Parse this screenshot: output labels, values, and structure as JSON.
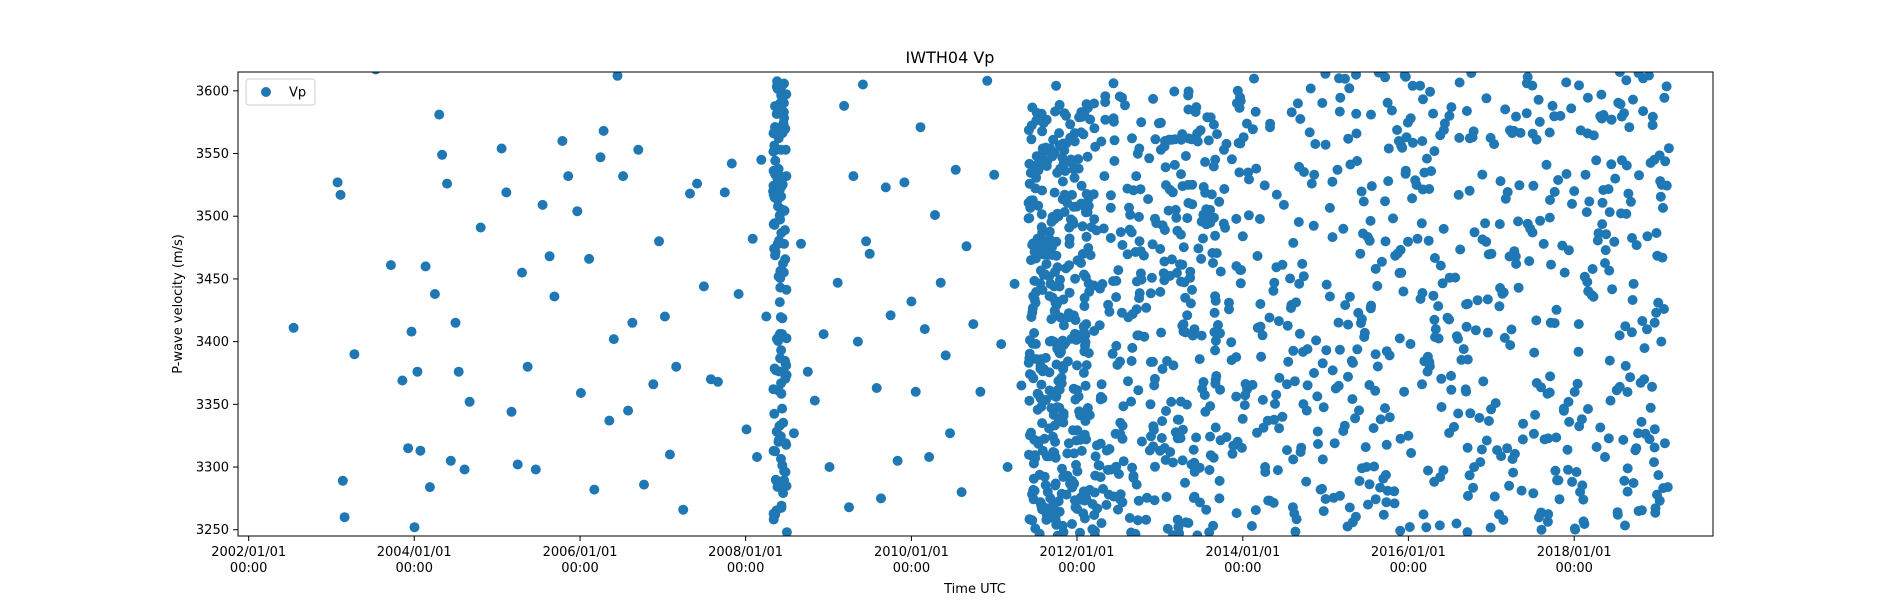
{
  "chart_data": {
    "type": "scatter",
    "title": "IWTH04 Vp",
    "xlabel": "Time UTC",
    "ylabel": "P-wave velocity (m/s)",
    "xlim": [
      "2001-11-15",
      "2019-09-05"
    ],
    "ylim": [
      3245,
      3615
    ],
    "x_ticks": [
      {
        "date": "2002-01-01",
        "label_1": "2002/01/01",
        "label_2": "00:00"
      },
      {
        "date": "2004-01-01",
        "label_1": "2004/01/01",
        "label_2": "00:00"
      },
      {
        "date": "2006-01-01",
        "label_1": "2006/01/01",
        "label_2": "00:00"
      },
      {
        "date": "2008-01-01",
        "label_1": "2008/01/01",
        "label_2": "00:00"
      },
      {
        "date": "2010-01-01",
        "label_1": "2010/01/01",
        "label_2": "00:00"
      },
      {
        "date": "2012-01-01",
        "label_1": "2012/01/01",
        "label_2": "00:00"
      },
      {
        "date": "2014-01-01",
        "label_1": "2014/01/01",
        "label_2": "00:00"
      },
      {
        "date": "2016-01-01",
        "label_1": "2016/01/01",
        "label_2": "00:00"
      },
      {
        "date": "2018-01-01",
        "label_1": "2018/01/01",
        "label_2": "00:00"
      }
    ],
    "y_ticks": [
      3250,
      3300,
      3350,
      3400,
      3450,
      3500,
      3550,
      3600
    ],
    "grid": false,
    "legend": {
      "position": "top-left",
      "entries": [
        "Vp"
      ]
    },
    "series": [
      {
        "name": "Vp",
        "color": "#1f77b4",
        "points": [
          [
            "2002-07-18",
            3411
          ],
          [
            "2003-01-28",
            3527
          ],
          [
            "2003-02-10",
            3517
          ],
          [
            "2003-02-20",
            3289
          ],
          [
            "2003-02-28",
            3260
          ],
          [
            "2003-04-12",
            3390
          ],
          [
            "2003-07-15",
            3617
          ],
          [
            "2003-09-20",
            3461
          ],
          [
            "2003-11-10",
            3369
          ],
          [
            "2003-12-05",
            3315
          ],
          [
            "2003-12-20",
            3408
          ],
          [
            "2004-01-02",
            3252
          ],
          [
            "2004-01-15",
            3376
          ],
          [
            "2004-01-28",
            3313
          ],
          [
            "2004-02-20",
            3460
          ],
          [
            "2004-03-10",
            3284
          ],
          [
            "2004-04-01",
            3438
          ],
          [
            "2004-04-20",
            3581
          ],
          [
            "2004-05-03",
            3549
          ],
          [
            "2004-05-25",
            3526
          ],
          [
            "2004-06-10",
            3305
          ],
          [
            "2004-07-01",
            3415
          ],
          [
            "2004-07-15",
            3376
          ],
          [
            "2004-08-10",
            3298
          ],
          [
            "2004-09-01",
            3352
          ],
          [
            "2004-10-20",
            3491
          ],
          [
            "2005-01-20",
            3554
          ],
          [
            "2005-02-10",
            3519
          ],
          [
            "2005-03-05",
            3344
          ],
          [
            "2005-04-01",
            3302
          ],
          [
            "2005-04-20",
            3455
          ],
          [
            "2005-05-15",
            3380
          ],
          [
            "2005-06-20",
            3298
          ],
          [
            "2005-07-20",
            3509
          ],
          [
            "2005-08-20",
            3468
          ],
          [
            "2005-09-10",
            3436
          ],
          [
            "2005-10-15",
            3560
          ],
          [
            "2005-11-10",
            3532
          ],
          [
            "2005-12-20",
            3504
          ],
          [
            "2006-01-05",
            3359
          ],
          [
            "2006-02-10",
            3466
          ],
          [
            "2006-03-05",
            3282
          ],
          [
            "2006-04-01",
            3547
          ],
          [
            "2006-04-15",
            3568
          ],
          [
            "2006-05-10",
            3337
          ],
          [
            "2006-05-30",
            3402
          ],
          [
            "2006-06-15",
            3612
          ],
          [
            "2006-07-10",
            3532
          ],
          [
            "2006-08-01",
            3345
          ],
          [
            "2006-08-20",
            3415
          ],
          [
            "2006-09-15",
            3553
          ],
          [
            "2006-10-10",
            3286
          ],
          [
            "2006-11-20",
            3366
          ],
          [
            "2006-12-15",
            3480
          ],
          [
            "2007-01-10",
            3420
          ],
          [
            "2007-02-01",
            3310
          ],
          [
            "2007-03-01",
            3380
          ],
          [
            "2007-04-01",
            3266
          ],
          [
            "2007-05-01",
            3518
          ],
          [
            "2007-06-01",
            3526
          ],
          [
            "2007-07-01",
            3444
          ],
          [
            "2007-08-01",
            3370
          ],
          [
            "2007-09-01",
            3368
          ],
          [
            "2007-10-01",
            3519
          ],
          [
            "2007-11-01",
            3542
          ],
          [
            "2007-12-01",
            3438
          ],
          [
            "2008-01-05",
            3330
          ],
          [
            "2008-02-01",
            3482
          ],
          [
            "2008-02-20",
            3308
          ],
          [
            "2008-03-10",
            3545
          ],
          [
            "2008-04-01",
            3420
          ],
          [
            "2008-05-01",
            3520
          ],
          [
            "2008-06-01",
            3590
          ],
          [
            "2008-07-01",
            3248
          ],
          [
            "2008-08-01",
            3327
          ],
          [
            "2008-09-01",
            3478
          ],
          [
            "2008-10-01",
            3376
          ],
          [
            "2008-11-01",
            3353
          ],
          [
            "2008-12-10",
            3406
          ],
          [
            "2009-01-05",
            3300
          ],
          [
            "2009-02-10",
            3447
          ],
          [
            "2009-03-10",
            3588
          ],
          [
            "2009-04-01",
            3268
          ],
          [
            "2009-04-20",
            3532
          ],
          [
            "2009-05-10",
            3400
          ],
          [
            "2009-06-01",
            3605
          ],
          [
            "2009-06-15",
            3480
          ],
          [
            "2009-07-01",
            3470
          ],
          [
            "2009-08-01",
            3363
          ],
          [
            "2009-08-20",
            3275
          ],
          [
            "2009-09-10",
            3523
          ],
          [
            "2009-10-01",
            3421
          ],
          [
            "2009-11-01",
            3305
          ],
          [
            "2009-12-01",
            3527
          ],
          [
            "2010-01-01",
            3432
          ],
          [
            "2010-01-20",
            3360
          ],
          [
            "2010-02-10",
            3571
          ],
          [
            "2010-03-01",
            3410
          ],
          [
            "2010-03-20",
            3308
          ],
          [
            "2010-04-15",
            3501
          ],
          [
            "2010-05-10",
            3447
          ],
          [
            "2010-06-01",
            3389
          ],
          [
            "2010-06-20",
            3327
          ],
          [
            "2010-07-15",
            3537
          ],
          [
            "2010-08-10",
            3280
          ],
          [
            "2010-09-01",
            3476
          ],
          [
            "2010-10-01",
            3414
          ],
          [
            "2010-11-01",
            3360
          ],
          [
            "2010-12-01",
            3608
          ],
          [
            "2011-01-01",
            3533
          ],
          [
            "2011-02-01",
            3398
          ],
          [
            "2011-03-01",
            3300
          ],
          [
            "2011-04-01",
            3446
          ],
          [
            "2011-05-01",
            3365
          ],
          [
            "2011-09-15",
            3266
          ],
          [
            "2011-10-01",
            3604
          ],
          [
            "2011-10-15",
            3392
          ],
          [
            "2011-11-01",
            3558
          ],
          [
            "2011-11-20",
            3293
          ],
          [
            "2011-12-10",
            3517
          ],
          [
            "2012-01-01",
            3381
          ],
          [
            "2012-01-20",
            3583
          ],
          [
            "2012-02-10",
            3322
          ],
          [
            "2012-03-01",
            3469
          ],
          [
            "2012-03-20",
            3249
          ],
          [
            "2012-04-10",
            3413
          ],
          [
            "2012-05-01",
            3532
          ],
          [
            "2012-05-20",
            3278
          ],
          [
            "2012-06-10",
            3606
          ],
          [
            "2012-07-01",
            3457
          ],
          [
            "2012-07-20",
            3333
          ],
          [
            "2012-08-10",
            3522
          ],
          [
            "2012-09-01",
            3395
          ],
          [
            "2012-09-20",
            3286
          ],
          [
            "2012-10-10",
            3575
          ],
          [
            "2012-11-01",
            3427
          ],
          [
            "2012-11-20",
            3350
          ],
          [
            "2012-12-10",
            3498
          ],
          [
            "2013-01-01",
            3313
          ],
          [
            "2013-01-20",
            3449
          ],
          [
            "2013-02-10",
            3561
          ],
          [
            "2013-03-01",
            3381
          ],
          [
            "2013-03-20",
            3258
          ],
          [
            "2013-04-10",
            3524
          ],
          [
            "2013-05-01",
            3421
          ],
          [
            "2013-05-20",
            3302
          ],
          [
            "2013-06-10",
            3587
          ],
          [
            "2013-07-01",
            3466
          ],
          [
            "2013-07-20",
            3344
          ],
          [
            "2013-08-10",
            3505
          ],
          [
            "2013-09-01",
            3393
          ],
          [
            "2013-09-20",
            3275
          ],
          [
            "2013-10-10",
            3553
          ],
          [
            "2013-11-01",
            3431
          ],
          [
            "2013-11-20",
            3317
          ],
          [
            "2013-12-10",
            3600
          ],
          [
            "2014-01-01",
            3484
          ],
          [
            "2014-01-20",
            3362
          ],
          [
            "2014-02-10",
            3253
          ],
          [
            "2014-03-01",
            3538
          ],
          [
            "2014-03-20",
            3412
          ],
          [
            "2014-04-10",
            3296
          ],
          [
            "2014-05-01",
            3571
          ],
          [
            "2014-05-20",
            3447
          ],
          [
            "2014-06-10",
            3331
          ],
          [
            "2014-07-01",
            3509
          ],
          [
            "2014-07-20",
            3384
          ],
          [
            "2014-08-10",
            3268
          ],
          [
            "2014-09-01",
            3590
          ],
          [
            "2014-09-20",
            3462
          ],
          [
            "2014-10-10",
            3345
          ],
          [
            "2014-11-01",
            3526
          ],
          [
            "2014-11-20",
            3401
          ],
          [
            "2014-12-10",
            3282
          ],
          [
            "2015-01-01",
            3557
          ],
          [
            "2015-01-20",
            3436
          ],
          [
            "2015-02-10",
            3319
          ],
          [
            "2015-03-01",
            3610
          ],
          [
            "2015-03-20",
            3490
          ],
          [
            "2015-04-10",
            3372
          ],
          [
            "2015-05-01",
            3256
          ],
          [
            "2015-05-20",
            3544
          ],
          [
            "2015-06-10",
            3418
          ],
          [
            "2015-07-01",
            3300
          ],
          [
            "2015-07-20",
            3581
          ],
          [
            "2015-08-10",
            3458
          ],
          [
            "2015-09-01",
            3338
          ],
          [
            "2015-09-20",
            3512
          ],
          [
            "2015-10-10",
            3389
          ],
          [
            "2015-11-01",
            3271
          ],
          [
            "2015-11-20",
            3560
          ],
          [
            "2015-12-10",
            3440
          ],
          [
            "2016-01-01",
            3325
          ],
          [
            "2016-01-20",
            3604
          ],
          [
            "2016-02-10",
            3482
          ],
          [
            "2016-03-01",
            3366
          ],
          [
            "2016-03-20",
            3252
          ],
          [
            "2016-04-10",
            3536
          ],
          [
            "2016-05-01",
            3410
          ],
          [
            "2016-05-20",
            3292
          ],
          [
            "2016-06-10",
            3574
          ],
          [
            "2016-07-01",
            3451
          ],
          [
            "2016-07-20",
            3332
          ],
          [
            "2016-08-10",
            3517
          ],
          [
            "2016-09-01",
            3394
          ],
          [
            "2016-09-20",
            3277
          ],
          [
            "2016-10-10",
            3563
          ],
          [
            "2016-11-01",
            3433
          ],
          [
            "2016-11-20",
            3314
          ],
          [
            "2016-12-10",
            3594
          ],
          [
            "2017-01-01",
            3470
          ],
          [
            "2017-01-20",
            3351
          ],
          [
            "2017-02-10",
            3528
          ],
          [
            "2017-03-01",
            3403
          ],
          [
            "2017-03-20",
            3285
          ],
          [
            "2017-04-10",
            3568
          ],
          [
            "2017-05-01",
            3443
          ],
          [
            "2017-05-20",
            3322
          ],
          [
            "2017-06-10",
            3611
          ],
          [
            "2017-07-01",
            3487
          ],
          [
            "2017-07-20",
            3367
          ],
          [
            "2017-08-10",
            3250
          ],
          [
            "2017-09-01",
            3541
          ],
          [
            "2017-09-20",
            3415
          ],
          [
            "2017-10-10",
            3297
          ],
          [
            "2017-11-01",
            3580
          ],
          [
            "2017-11-20",
            3455
          ],
          [
            "2017-12-10",
            3336
          ],
          [
            "2018-01-01",
            3520
          ],
          [
            "2018-01-20",
            3392
          ],
          [
            "2018-02-10",
            3274
          ],
          [
            "2018-03-01",
            3566
          ],
          [
            "2018-03-20",
            3437
          ],
          [
            "2018-04-10",
            3316
          ],
          [
            "2018-05-01",
            3597
          ],
          [
            "2018-05-20",
            3473
          ],
          [
            "2018-06-10",
            3353
          ],
          [
            "2018-07-01",
            3530
          ],
          [
            "2018-07-20",
            3405
          ],
          [
            "2018-08-10",
            3289
          ],
          [
            "2018-09-01",
            3571
          ],
          [
            "2018-09-20",
            3446
          ],
          [
            "2018-10-10",
            3327
          ],
          [
            "2018-11-01",
            3610
          ],
          [
            "2018-11-20",
            3484
          ],
          [
            "2018-12-10",
            3364
          ],
          [
            "2019-01-01",
            3278
          ],
          [
            "2019-01-15",
            3528
          ],
          [
            "2019-01-20",
            3400
          ],
          [
            "2019-01-25",
            3467
          ],
          [
            "2019-02-01",
            3426
          ],
          [
            "2019-02-05",
            3319
          ]
        ],
        "dense_clusters": [
          {
            "start": "2008-05-01",
            "end": "2008-06-30",
            "count": 130,
            "vmin": 3245,
            "vmax": 3610
          },
          {
            "start": "2011-06-01",
            "end": "2012-02-28",
            "count": 360,
            "vmin": 3245,
            "vmax": 3590
          },
          {
            "start": "2012-03-01",
            "end": "2013-09-30",
            "count": 290,
            "vmin": 3245,
            "vmax": 3600
          },
          {
            "start": "2013-10-01",
            "end": "2019-02-28",
            "count": 520,
            "vmin": 3245,
            "vmax": 3615
          }
        ]
      }
    ]
  }
}
